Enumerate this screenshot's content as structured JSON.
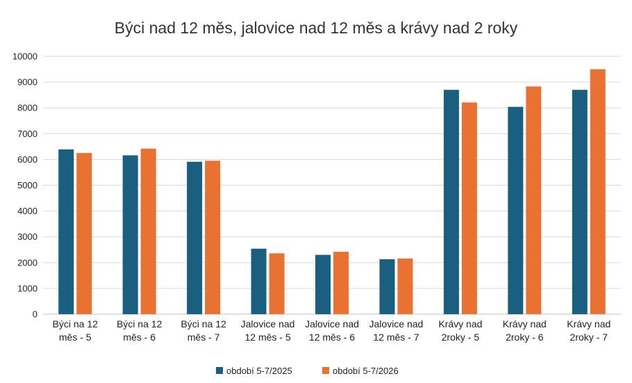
{
  "chart_data": {
    "type": "bar",
    "title": "Býci nad 12 měs, jalovice nad 12 měs a krávy nad 2 roky",
    "xlabel": "",
    "ylabel": "",
    "ylim": [
      0,
      10000
    ],
    "yticks": [
      0,
      1000,
      2000,
      3000,
      4000,
      5000,
      6000,
      7000,
      8000,
      9000,
      10000
    ],
    "grid": true,
    "legend": "bottom",
    "categories": [
      [
        "Býci na 12",
        "měs - 5"
      ],
      [
        "Býci na 12",
        "měs - 6"
      ],
      [
        "Býci na 12",
        "měs - 7"
      ],
      [
        "Jalovice nad",
        "12 měs - 5"
      ],
      [
        "Jalovice nad",
        "12 měs - 6"
      ],
      [
        "Jalovice nad",
        "12 měs - 7"
      ],
      [
        "Krávy nad",
        "2roky - 5"
      ],
      [
        "Krávy nad",
        "2roky - 6"
      ],
      [
        "Krávy nad",
        "2roky - 7"
      ]
    ],
    "series": [
      {
        "name": "období 5-7/2025",
        "color": "#1a5e80",
        "values": [
          6390,
          6160,
          5910,
          2540,
          2300,
          2130,
          8700,
          8040,
          8700
        ]
      },
      {
        "name": "období 5-7/2026",
        "color": "#e97132",
        "values": [
          6250,
          6420,
          5950,
          2360,
          2420,
          2160,
          8210,
          8830,
          9500
        ]
      }
    ]
  }
}
